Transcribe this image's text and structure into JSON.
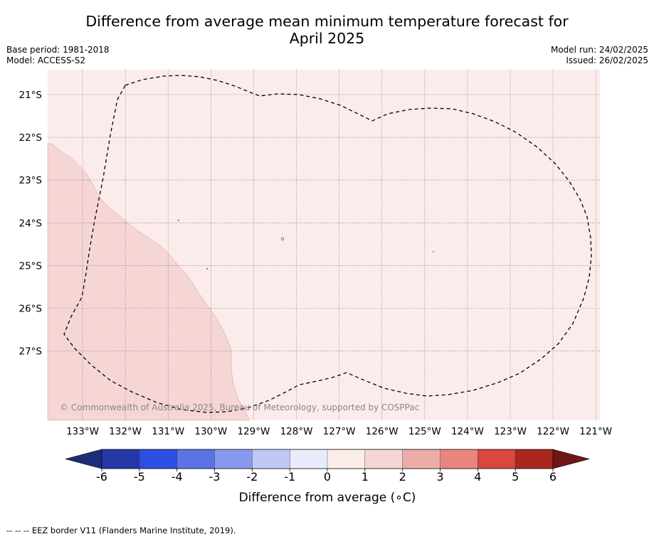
{
  "title_line1": "Difference from average mean minimum temperature forecast for",
  "title_line2": "April 2025",
  "base_period": "Base period: 1981-2018",
  "model": "Model: ACCESS-S2",
  "model_run": "Model run: 24/02/2025",
  "issued": "Issued: 26/02/2025",
  "copyright": "© Commonwealth of Australia 2025, Bureau of Meteorology, supported by COSPPac",
  "footnote": "--  --  -- EEZ border V11 (Flanders Marine Institute, 2019).",
  "colors": {
    "map_background": "#fbeceb",
    "warm_region": "#f5d6d5",
    "eez_line": "#000000",
    "grid": "#7a5a6e"
  },
  "latitude_labels": [
    "21°S",
    "22°S",
    "23°S",
    "24°S",
    "25°S",
    "26°S",
    "27°S"
  ],
  "longitude_labels": [
    "133°W",
    "132°W",
    "131°W",
    "130°W",
    "129°W",
    "128°W",
    "127°W",
    "126°W",
    "125°W",
    "124°W",
    "123°W",
    "122°W",
    "121°W"
  ],
  "colorbar": {
    "label": "Difference from average (∘C)",
    "ticks": [
      "-6",
      "-5",
      "-4",
      "-3",
      "-2",
      "-1",
      "0",
      "1",
      "2",
      "3",
      "4",
      "5",
      "6"
    ],
    "low_extend_color": "#1a2e7a",
    "high_extend_color": "#701616",
    "bins": [
      "#2438a8",
      "#2d4ee0",
      "#5a74e6",
      "#8898ee",
      "#c0c8f6",
      "#e8ebfb",
      "#fcecea",
      "#f5d6d5",
      "#eeaca8",
      "#e8857e",
      "#d9473d",
      "#a8281f"
    ]
  }
}
